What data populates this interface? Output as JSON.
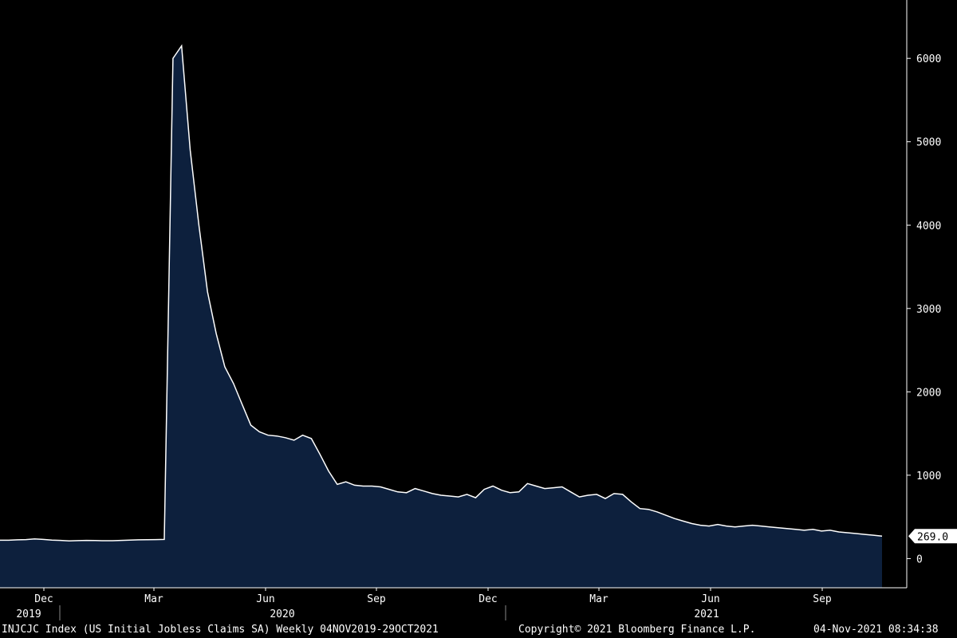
{
  "chart_data": {
    "type": "area",
    "title": "",
    "xlabel": "",
    "ylabel": "",
    "ylim": [
      -350,
      6700
    ],
    "yticks": [
      0,
      1000,
      2000,
      3000,
      4000,
      5000,
      6000
    ],
    "ytick_labels": [
      "0",
      "1000",
      "2000",
      "3000",
      "4000",
      "5000",
      "6000"
    ],
    "x_month_labels": [
      "Dec",
      "Mar",
      "Jun",
      "Sep",
      "Dec",
      "Mar",
      "Jun",
      "Sep"
    ],
    "x_year_labels": [
      "2019",
      "2020",
      "2021"
    ],
    "last_value_label": "269.0",
    "grid": false,
    "colors": {
      "background": "#000000",
      "fill": "#0d203d",
      "line": "#ffffff"
    },
    "series": [
      {
        "values": [
          220,
          220,
          225,
          228,
          236,
          230,
          222,
          218,
          212,
          215,
          218,
          216,
          214,
          214,
          218,
          222,
          225,
          226,
          228,
          230,
          6000,
          6150,
          4900,
          4000,
          3200,
          2700,
          2300,
          2100,
          1850,
          1600,
          1520,
          1480,
          1470,
          1450,
          1420,
          1480,
          1440,
          1250,
          1050,
          890,
          920,
          880,
          870,
          870,
          860,
          830,
          800,
          790,
          840,
          810,
          780,
          760,
          750,
          740,
          770,
          730,
          830,
          870,
          820,
          790,
          800,
          900,
          870,
          840,
          850,
          860,
          800,
          740,
          760,
          770,
          720,
          780,
          770,
          680,
          600,
          590,
          560,
          520,
          480,
          450,
          420,
          400,
          390,
          410,
          390,
          380,
          390,
          400,
          390,
          380,
          370,
          360,
          350,
          340,
          350,
          330,
          340,
          320,
          310,
          300,
          290,
          280,
          269
        ]
      }
    ]
  },
  "footer": {
    "index_label": "INJCJC Index (US Initial Jobless Claims SA)  Weekly 04NOV2019-29OCT2021",
    "copyright": "Copyright© 2021 Bloomberg Finance L.P.",
    "timestamp": "04-Nov-2021 08:34:38"
  }
}
